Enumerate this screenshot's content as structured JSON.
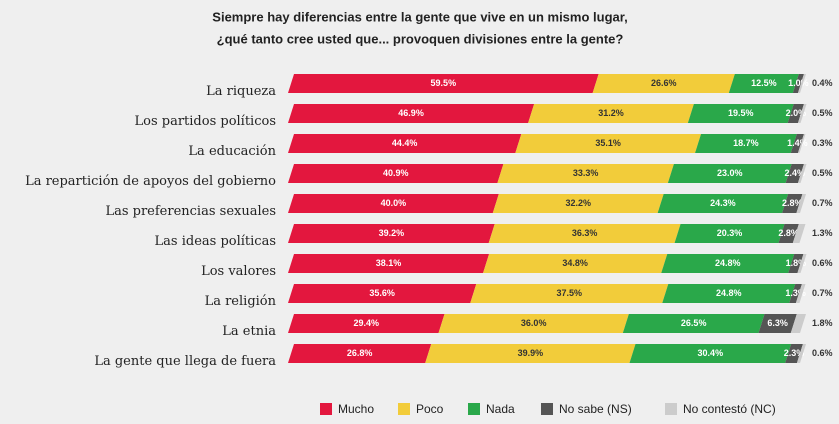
{
  "chart_data": {
    "type": "stacked-barh",
    "title": "Siempre hay diferencias entre la gente que vive en un mismo lugar,",
    "subtitle": "¿qué tanto cree usted que... provoquen divisiones entre la gente?",
    "categories": [
      "La riqueza",
      "Los partidos políticos",
      "La educación",
      "La repartición de apoyos del gobierno",
      "Las preferencias sexuales",
      "Las ideas políticas",
      "Los valores",
      "La religión",
      "La etnia",
      "La gente que llega de fuera"
    ],
    "xlim": [
      0,
      100
    ],
    "series": [
      {
        "name": "Mucho",
        "color": "#e3173e",
        "values": [
          59.5,
          46.9,
          44.4,
          40.9,
          40.0,
          39.2,
          38.1,
          35.6,
          29.4,
          26.8
        ],
        "value_labels": [
          "59.5%",
          "46.9%",
          "44.4%",
          "40.9%",
          "40.0%",
          "39.2%",
          "38.1%",
          "35.6%",
          "29.4%",
          "26.8%"
        ]
      },
      {
        "name": "Poco",
        "color": "#f2cc3a",
        "values": [
          26.6,
          31.2,
          35.1,
          33.3,
          32.2,
          36.3,
          34.8,
          37.5,
          36.0,
          39.9
        ],
        "value_labels": [
          "26.6%",
          "31.2%",
          "35.1%",
          "33.3%",
          "32.2%",
          "36.3%",
          "34.8%",
          "37.5%",
          "36.0%",
          "39.9%"
        ]
      },
      {
        "name": "Nada",
        "color": "#2aa84a",
        "values": [
          12.5,
          19.5,
          18.7,
          23.0,
          24.3,
          20.3,
          24.8,
          24.8,
          26.5,
          30.4
        ],
        "value_labels": [
          "12.5%",
          "19.5%",
          "18.7%",
          "23.0%",
          "24.3%",
          "20.3%",
          "24.8%",
          "24.8%",
          "26.5%",
          "30.4%"
        ]
      },
      {
        "name": "No sabe (NS)",
        "color": "#555555",
        "values": [
          1.0,
          2.0,
          1.4,
          2.4,
          2.8,
          2.8,
          1.8,
          1.3,
          6.3,
          2.3
        ],
        "value_labels": [
          "1.0%",
          "2.0%",
          "1.4%",
          "2.4%",
          "2.8%",
          "2.8%",
          "1.8%",
          "1.3%",
          "6.3%",
          "2.3%"
        ]
      },
      {
        "name": "No contestó (NC)",
        "color": "#cccccc",
        "values": [
          0.4,
          0.5,
          0.3,
          0.5,
          0.7,
          1.3,
          0.6,
          0.7,
          1.8,
          0.6
        ],
        "value_labels": [
          "0.4%",
          "0.5%",
          "0.3%",
          "0.5%",
          "0.7%",
          "1.3%",
          "0.6%",
          "0.7%",
          "1.8%",
          "0.6%"
        ]
      }
    ]
  }
}
